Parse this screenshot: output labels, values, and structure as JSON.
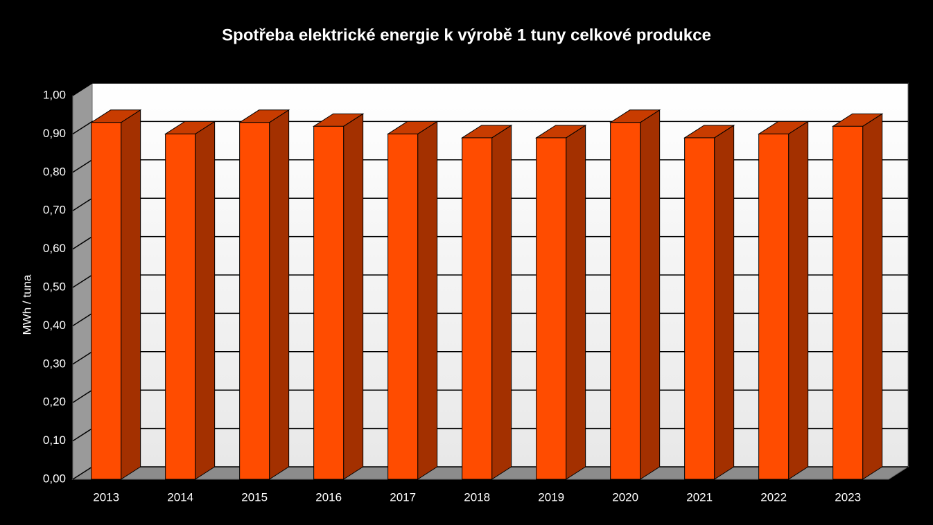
{
  "chart_data": {
    "type": "bar3d",
    "title": "Spotřeba elektrické energie k výrobě 1 tuny celkové produkce",
    "y_label": "MWh / tuna",
    "categories": [
      "2013",
      "2014",
      "2015",
      "2016",
      "2017",
      "2018",
      "2019",
      "2020",
      "2021",
      "2022",
      "2023"
    ],
    "values": [
      0.93,
      0.9,
      0.93,
      0.92,
      0.9,
      0.89,
      0.89,
      0.93,
      0.89,
      0.9,
      0.92
    ],
    "color": "#ff4c00",
    "ylim": [
      0,
      1
    ],
    "yticks": [
      {
        "value": 0,
        "label": "0,00"
      },
      {
        "value": 0.1,
        "label": "0,10"
      },
      {
        "value": 0.2,
        "label": "0,20"
      },
      {
        "value": 0.3,
        "label": "0,30"
      },
      {
        "value": 0.4,
        "label": "0,40"
      },
      {
        "value": 0.5,
        "label": "0,50"
      },
      {
        "value": 0.6,
        "label": "0,60"
      },
      {
        "value": 0.7,
        "label": "0,70"
      },
      {
        "value": 0.8,
        "label": "0,80"
      },
      {
        "value": 0.9,
        "label": "0,90"
      },
      {
        "value": 1,
        "label": "1,00"
      }
    ],
    "grid": true
  }
}
